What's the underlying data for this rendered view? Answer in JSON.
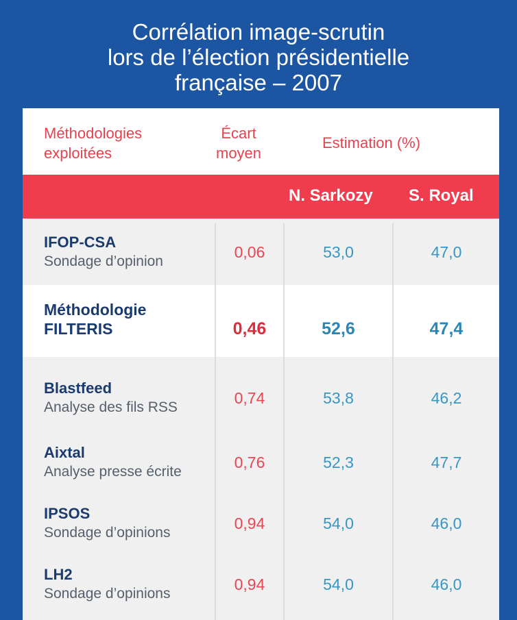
{
  "title": {
    "line1": "Corrélation image-scrutin",
    "line2": "lors de l’élection présidentielle",
    "line3": "française – 2007"
  },
  "header": {
    "methodologies_line1": "Méthodologies",
    "methodologies_line2": "exploitées",
    "ecart_line1": "Écart",
    "ecart_line2": "moyen",
    "estimation": "Estimation (%)",
    "sarkozy": "N. Sarkozy",
    "royal": "S. Royal"
  },
  "colors": {
    "background": "#1c56a3",
    "header_band": "#ef3d4d",
    "ecart_value": "#e84652",
    "estimation_value": "#3796c3",
    "method_name": "#1b3b6e"
  },
  "chart_data": {
    "type": "table",
    "title": "Corrélation image-scrutin lors de l’élection présidentielle française – 2007",
    "columns": [
      "Méthodologies exploitées",
      "Écart moyen",
      "N. Sarkozy",
      "S. Royal"
    ],
    "rows": [
      {
        "method": "IFOP-CSA",
        "detail": "Sondage d’opinion",
        "ecart": "0,06",
        "sarkozy": "53,0",
        "royal": "47,0",
        "highlighted": false
      },
      {
        "method_line1": "Méthodologie",
        "method_line2": "FILTERIS",
        "ecart": "0,46",
        "sarkozy": "52,6",
        "royal": "47,4",
        "highlighted": true
      },
      {
        "method": "Blastfeed",
        "detail": "Analyse des fils RSS",
        "ecart": "0,74",
        "sarkozy": "53,8",
        "royal": "46,2",
        "highlighted": false
      },
      {
        "method": "Aixtal",
        "detail": "Analyse presse écrite",
        "ecart": "0,76",
        "sarkozy": "52,3",
        "royal": "47,7",
        "highlighted": false
      },
      {
        "method": "IPSOS",
        "detail": "Sondage d’opinions",
        "ecart": "0,94",
        "sarkozy": "54,0",
        "royal": "46,0",
        "highlighted": false
      },
      {
        "method": "LH2",
        "detail": "Sondage d’opinions",
        "ecart": "0,94",
        "sarkozy": "54,0",
        "royal": "46,0",
        "highlighted": false
      }
    ]
  }
}
